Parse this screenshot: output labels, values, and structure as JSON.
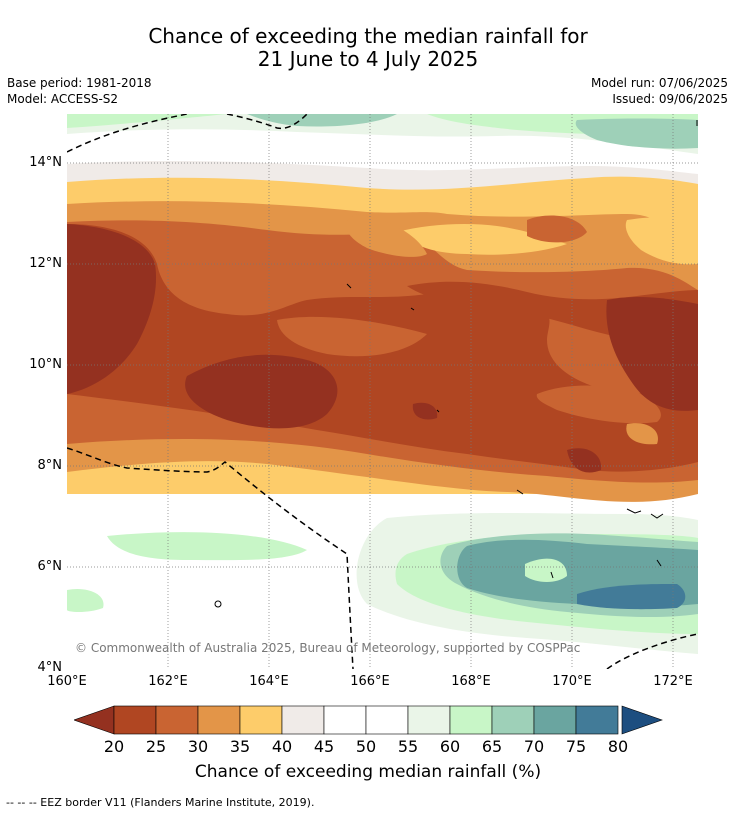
{
  "title_line1": "Chance of exceeding the median rainfall for",
  "title_line2": "21 June to 4 July 2025",
  "base_period": "Base period: 1981-2018",
  "model": "Model: ACCESS-S2",
  "model_run": "Model run: 07/06/2025",
  "issued": "Issued: 09/06/2025",
  "copyright": "© Commonwealth of Australia 2025, Bureau of Meteorology, supported by COSPPac",
  "y_ticks": [
    "14°N",
    "12°N",
    "10°N",
    "8°N",
    "6°N",
    "4°N"
  ],
  "x_ticks": [
    "160°E",
    "162°E",
    "164°E",
    "166°E",
    "168°E",
    "170°E",
    "172°E"
  ],
  "colorbar": {
    "ticks": [
      "20",
      "25",
      "30",
      "35",
      "40",
      "45",
      "50",
      "55",
      "60",
      "65",
      "70",
      "75",
      "80"
    ],
    "title": "Chance of exceeding median rainfall (%)",
    "colors": [
      "#b04622",
      "#c96432",
      "#e39548",
      "#fdcc6a",
      "#f0ebe8",
      "#ffffff",
      "#ffffff",
      "#eaf5e8",
      "#c8f6c7",
      "#9ed0b8",
      "#6aa5a0",
      "#427b98"
    ],
    "low_color": "#943120",
    "high_color": "#1d4e80"
  },
  "footer": "--  --  -- EEZ border V11 (Flanders Marine Institute, 2019)."
}
